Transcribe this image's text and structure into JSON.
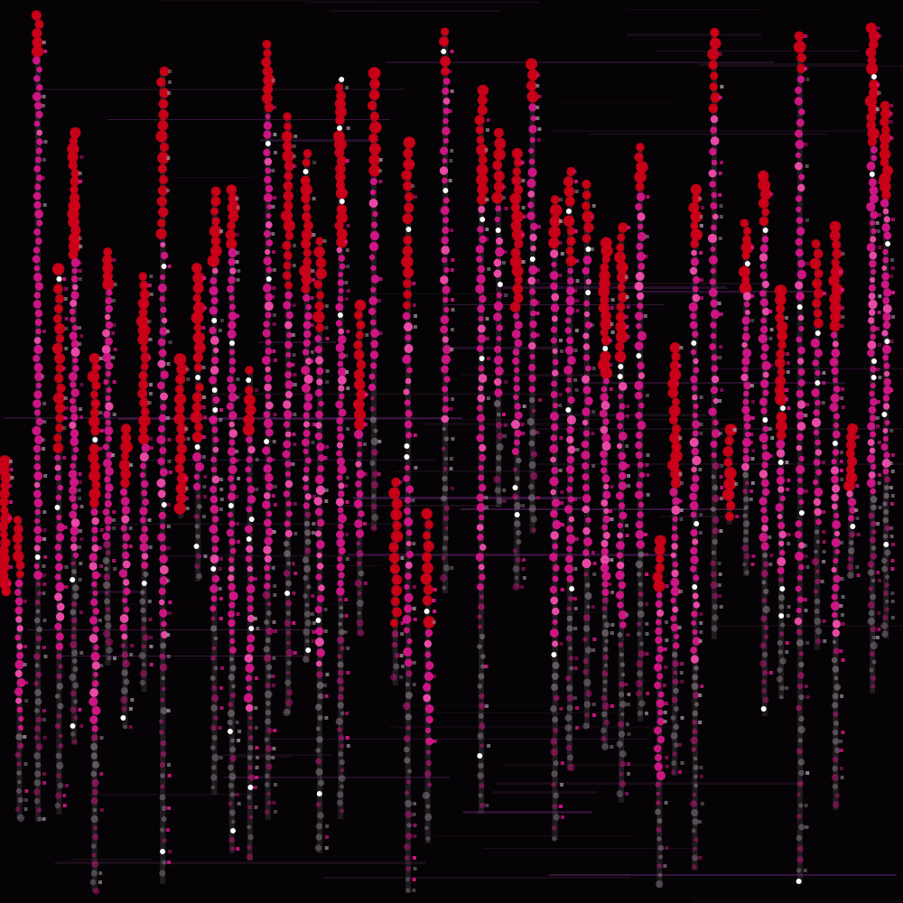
{
  "palette": {
    "background": "#050305",
    "accent_red": "#d00018",
    "accent_magenta": "#e0158f",
    "accent_pink": "#ff4fb5",
    "faded_gray": "#9a8a96",
    "highlight_white": "#ffffff",
    "glitch_dark": "#1a0d18",
    "glitch_purple": "#3a1640"
  },
  "artwork": {
    "style": "glitch-art-dot-columns",
    "description_tag": "abstract-pink-red-dot-matrix-rain"
  }
}
